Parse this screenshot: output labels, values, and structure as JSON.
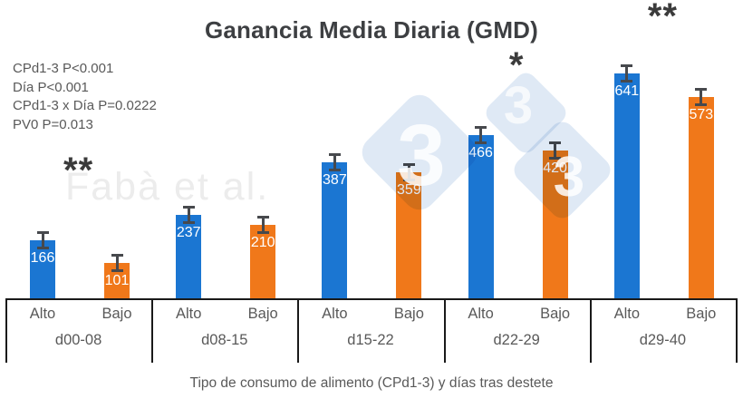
{
  "page_title": "Ganancia Media Diaria (GMD)",
  "stats_lines": [
    "CPd1-3 P<0.001",
    "Día P<0.001",
    "CPd1-3 x Día P=0.0222",
    "PV0 P=0.013"
  ],
  "watermark": {
    "author_text": "Fabà et al.",
    "logo_digit": "3"
  },
  "colors": {
    "alto_blue": "#1b76d2",
    "bajo_orange": "#f0781a",
    "error_bar": "#47494d",
    "axis_line": "#1a1a1a",
    "label_gray": "#595959",
    "title_gray": "#3d3f42",
    "watermark_blue": "#dfe9f5",
    "watermark_text_gray": "#ececec"
  },
  "chart_data": {
    "type": "bar",
    "title": "Ganancia Media Diaria (GMD)",
    "xlabel": "Tipo de consumo de alimento (CPd1-3) y días tras destete",
    "ylabel": "",
    "ylim": [
      0,
      700
    ],
    "grid": false,
    "legend_position": "none",
    "categories": [
      "d00-08",
      "d08-15",
      "d15-22",
      "d22-29",
      "d29-40"
    ],
    "series": [
      {
        "name": "Alto",
        "color": "#1b76d2",
        "values": [
          166,
          237,
          387,
          466,
          641
        ]
      },
      {
        "name": "Bajo",
        "color": "#f0781a",
        "values": [
          101,
          210,
          359,
          420,
          573
        ]
      }
    ],
    "value_labels_shown": true,
    "error_bars_shown": true,
    "significance_markers": [
      {
        "category": "d00-08",
        "marker": "**"
      },
      {
        "category": "d22-29",
        "marker": "*"
      },
      {
        "category": "d29-40",
        "marker": "**"
      }
    ]
  }
}
